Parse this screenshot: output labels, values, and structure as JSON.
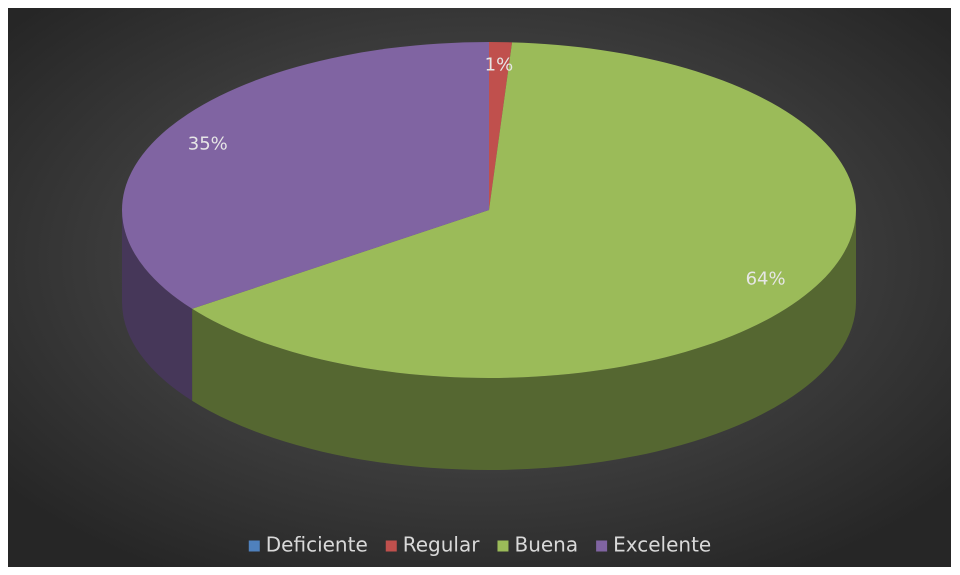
{
  "chart_data": {
    "type": "pie",
    "categories": [
      "Deficiente",
      "Regular",
      "Buena",
      "Excelente"
    ],
    "values": [
      0,
      1,
      64,
      35
    ],
    "value_labels": [
      null,
      "1%",
      "64%",
      "35%"
    ],
    "colors": [
      "#4f81bd",
      "#c0504d",
      "#9bbb59",
      "#8064a2"
    ],
    "legend": "bottom"
  }
}
